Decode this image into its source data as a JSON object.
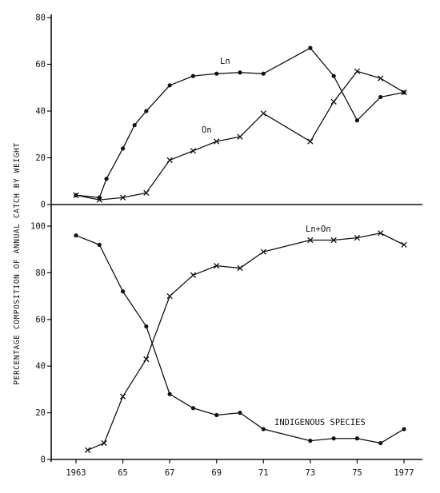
{
  "chart_data": [
    {
      "type": "line",
      "panel": "upper",
      "ylim": [
        0,
        80
      ],
      "yticks": [
        {
          "value": 80,
          "label": "80"
        },
        {
          "value": 60,
          "label": "60"
        },
        {
          "value": 40,
          "label": "40"
        },
        {
          "value": 20,
          "label": "20"
        },
        {
          "value": 0,
          "label": "0"
        }
      ],
      "grid": false,
      "series": [
        {
          "name": "Ln",
          "color": "#111111",
          "marker": "dot",
          "points": [
            {
              "x": 1963,
              "y": 4
            },
            {
              "x": 1964,
              "y": 3
            },
            {
              "x": 1964.3,
              "y": 11
            },
            {
              "x": 1965,
              "y": 24
            },
            {
              "x": 1965.5,
              "y": 34
            },
            {
              "x": 1966,
              "y": 40
            },
            {
              "x": 1967,
              "y": 51
            },
            {
              "x": 1968,
              "y": 55
            },
            {
              "x": 1969,
              "y": 56
            },
            {
              "x": 1970,
              "y": 56.5
            },
            {
              "x": 1971,
              "y": 56
            },
            {
              "x": 1973,
              "y": 67
            },
            {
              "x": 1974,
              "y": 55
            },
            {
              "x": 1975,
              "y": 36
            },
            {
              "x": 1976,
              "y": 46
            },
            {
              "x": 1977,
              "y": 48
            }
          ]
        },
        {
          "name": "On",
          "color": "#111111",
          "marker": "cross",
          "points": [
            {
              "x": 1963,
              "y": 4
            },
            {
              "x": 1964,
              "y": 2
            },
            {
              "x": 1965,
              "y": 3
            },
            {
              "x": 1966,
              "y": 5
            },
            {
              "x": 1967,
              "y": 19
            },
            {
              "x": 1968,
              "y": 23
            },
            {
              "x": 1969,
              "y": 27
            },
            {
              "x": 1970,
              "y": 29
            },
            {
              "x": 1971,
              "y": 39
            },
            {
              "x": 1973,
              "y": 27
            },
            {
              "x": 1974,
              "y": 44
            },
            {
              "x": 1975,
              "y": 57
            },
            {
              "x": 1976,
              "y": 54
            },
            {
              "x": 1977,
              "y": 48
            }
          ]
        }
      ]
    },
    {
      "type": "line",
      "panel": "lower",
      "ylim": [
        0,
        105
      ],
      "yticks": [
        {
          "value": 100,
          "label": "100"
        },
        {
          "value": 80,
          "label": "80"
        },
        {
          "value": 60,
          "label": "60"
        },
        {
          "value": 40,
          "label": "40"
        },
        {
          "value": 20,
          "label": "20"
        },
        {
          "value": 0,
          "label": "0"
        }
      ],
      "grid": false,
      "series": [
        {
          "name": "Ln+On",
          "color": "#111111",
          "marker": "cross",
          "points": [
            {
              "x": 1963.5,
              "y": 4
            },
            {
              "x": 1964.2,
              "y": 7
            },
            {
              "x": 1965,
              "y": 27
            },
            {
              "x": 1966,
              "y": 43
            },
            {
              "x": 1967,
              "y": 70
            },
            {
              "x": 1968,
              "y": 79
            },
            {
              "x": 1969,
              "y": 83
            },
            {
              "x": 1970,
              "y": 82
            },
            {
              "x": 1971,
              "y": 89
            },
            {
              "x": 1973,
              "y": 94
            },
            {
              "x": 1974,
              "y": 94
            },
            {
              "x": 1975,
              "y": 95
            },
            {
              "x": 1976,
              "y": 97
            },
            {
              "x": 1977,
              "y": 92
            }
          ]
        },
        {
          "name": "INDIGENOUS SPECIES",
          "color": "#111111",
          "marker": "dot",
          "points": [
            {
              "x": 1963,
              "y": 96
            },
            {
              "x": 1964,
              "y": 92
            },
            {
              "x": 1965,
              "y": 72
            },
            {
              "x": 1966,
              "y": 57
            },
            {
              "x": 1967,
              "y": 28
            },
            {
              "x": 1968,
              "y": 22
            },
            {
              "x": 1969,
              "y": 19
            },
            {
              "x": 1970,
              "y": 20
            },
            {
              "x": 1971,
              "y": 13
            },
            {
              "x": 1973,
              "y": 8
            },
            {
              "x": 1974,
              "y": 9
            },
            {
              "x": 1975,
              "y": 9
            },
            {
              "x": 1976,
              "y": 7
            },
            {
              "x": 1977,
              "y": 13
            }
          ]
        }
      ]
    }
  ],
  "axes": {
    "ylabel": "PERCENTAGE COMPOSITION OF ANNUAL CATCH BY WEIGHT",
    "xlim": [
      1962.3,
      1977.8
    ],
    "xticks": [
      {
        "value": 1963,
        "label": "1963"
      },
      {
        "value": 1965,
        "label": "65"
      },
      {
        "value": 1967,
        "label": "67"
      },
      {
        "value": 1969,
        "label": "69"
      },
      {
        "value": 1971,
        "label": "71"
      },
      {
        "value": 1973,
        "label": "73"
      },
      {
        "value": 1975,
        "label": "75"
      },
      {
        "value": 1977,
        "label": "1977"
      }
    ]
  }
}
